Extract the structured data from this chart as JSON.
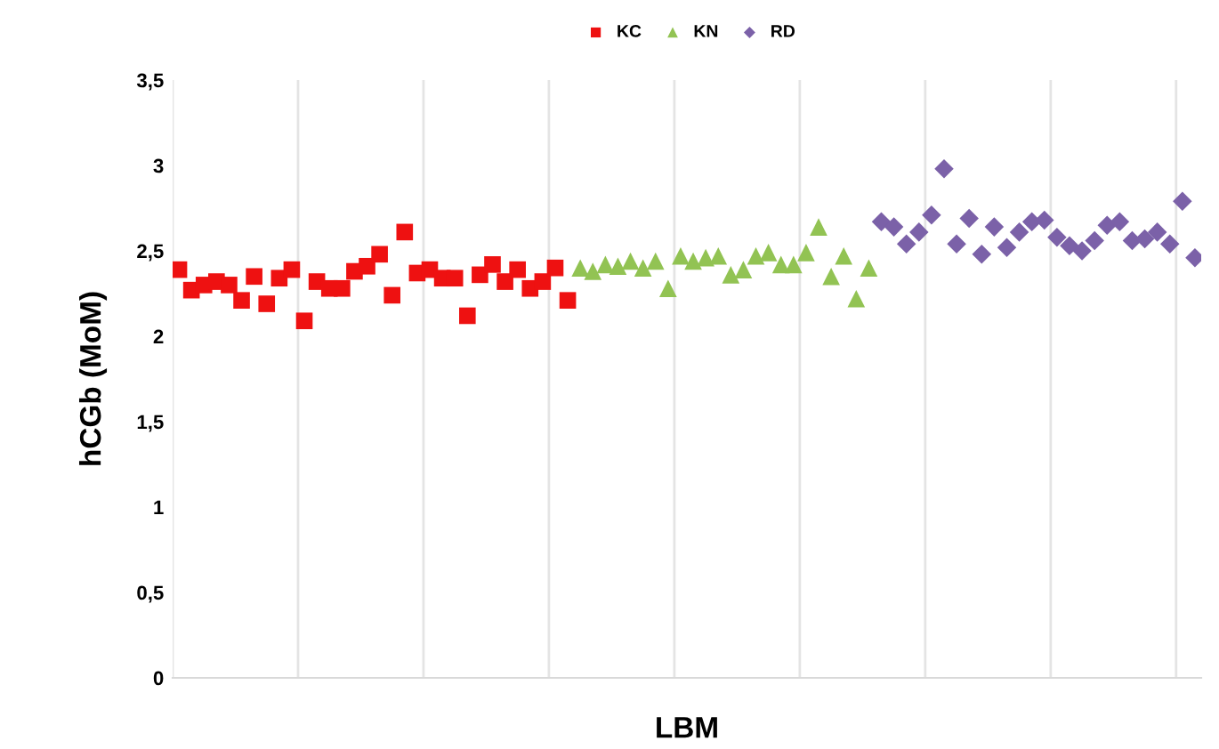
{
  "chart_data": {
    "type": "scatter",
    "xlabel": "LBM",
    "ylabel": "hCGb (MoM)",
    "categories": [
      null,
      null,
      null,
      null,
      null,
      null,
      null,
      null,
      null,
      null,
      null,
      null,
      null,
      null,
      null,
      null,
      null,
      null,
      null,
      null,
      null,
      null,
      null,
      null,
      null,
      null,
      null,
      null,
      null,
      null,
      null,
      null,
      null,
      null,
      null,
      null,
      null,
      null,
      null,
      null,
      null,
      null,
      null,
      null,
      null,
      null,
      null,
      null,
      null,
      null,
      null,
      null,
      null,
      null,
      null,
      null,
      null,
      null,
      null,
      null,
      null,
      null,
      null,
      null,
      null,
      null,
      null,
      null,
      null,
      null,
      null,
      null,
      null,
      null,
      null,
      null,
      null,
      null,
      null,
      null,
      null,
      null
    ],
    "ylim": [
      0,
      3.5
    ],
    "yticks": [
      0,
      {
        "value": 0.5,
        "label": "0,5"
      },
      1,
      {
        "value": 1.5,
        "label": "1,5"
      },
      2,
      {
        "value": 2.5,
        "label": "2,5"
      },
      3,
      {
        "value": 3.5,
        "label": "3,5"
      }
    ],
    "grid": "x",
    "legend": "top",
    "series": [
      {
        "name": "KC",
        "color": "#ee1111",
        "marker": "square",
        "values": [
          2.39,
          2.27,
          2.3,
          2.32,
          2.3,
          2.21,
          2.35,
          2.19,
          2.34,
          2.39,
          2.09,
          2.32,
          2.28,
          2.28,
          2.38,
          2.41,
          2.48,
          2.24,
          2.61,
          2.37,
          2.39,
          2.34,
          2.34,
          2.12,
          2.36,
          2.42,
          2.32,
          2.39,
          2.28,
          2.32,
          2.4,
          2.21,
          null,
          null,
          null,
          null,
          null,
          null,
          null,
          null,
          null,
          null,
          null,
          null,
          null,
          null,
          null,
          null,
          null,
          null,
          null,
          null,
          null,
          null,
          null,
          null,
          null,
          null,
          null,
          null,
          null,
          null,
          null,
          null,
          null,
          null,
          null,
          null,
          null,
          null,
          null,
          null,
          null,
          null,
          null,
          null,
          null,
          null,
          null,
          null,
          null,
          null
        ]
      },
      {
        "name": "KN",
        "color": "#92c353",
        "marker": "triangle",
        "values": [
          null,
          null,
          null,
          null,
          null,
          null,
          null,
          null,
          null,
          null,
          null,
          null,
          null,
          null,
          null,
          null,
          null,
          null,
          null,
          null,
          null,
          null,
          null,
          null,
          null,
          null,
          null,
          null,
          null,
          null,
          null,
          null,
          2.4,
          2.38,
          2.42,
          2.41,
          2.44,
          2.4,
          2.44,
          2.28,
          2.47,
          2.44,
          2.46,
          2.47,
          2.36,
          2.39,
          2.47,
          2.49,
          2.42,
          2.42,
          2.49,
          2.64,
          2.35,
          2.47,
          2.22,
          2.4,
          null,
          null,
          null,
          null,
          null,
          null,
          null,
          null,
          null,
          null,
          null,
          null,
          null,
          null,
          null,
          null,
          null,
          null,
          null,
          null,
          null,
          null,
          null,
          null,
          null,
          null
        ]
      },
      {
        "name": "RD",
        "color": "#7b61a8",
        "marker": "diamond",
        "values": [
          null,
          null,
          null,
          null,
          null,
          null,
          null,
          null,
          null,
          null,
          null,
          null,
          null,
          null,
          null,
          null,
          null,
          null,
          null,
          null,
          null,
          null,
          null,
          null,
          null,
          null,
          null,
          null,
          null,
          null,
          null,
          null,
          null,
          null,
          null,
          null,
          null,
          null,
          null,
          null,
          null,
          null,
          null,
          null,
          null,
          null,
          null,
          null,
          null,
          null,
          null,
          null,
          null,
          null,
          null,
          null,
          2.67,
          2.64,
          2.54,
          2.61,
          2.71,
          2.98,
          2.54,
          2.69,
          2.48,
          2.64,
          2.52,
          2.61,
          2.67,
          2.68,
          2.58,
          2.53,
          2.5,
          2.56,
          2.65,
          2.67,
          2.56,
          2.57,
          2.61,
          2.54,
          2.79,
          2.46
        ]
      }
    ]
  }
}
